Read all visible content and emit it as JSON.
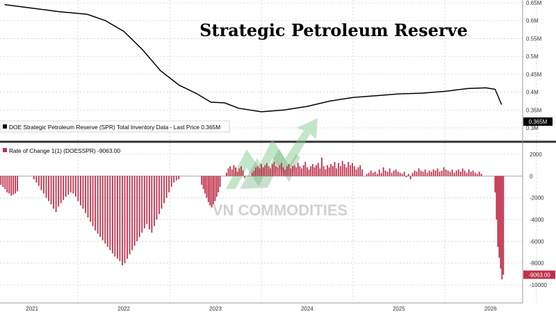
{
  "chart_data": [
    {
      "type": "line",
      "title": "Strategic Petroleum Reserve",
      "legend": {
        "label": "DOE Strategic Petroleum Reserve (SPR) Total Inventory Data - Last Price 0.365M",
        "placement": "bottom-left"
      },
      "last_value_label": "0.365M",
      "y_ticks": [
        "0.65M",
        "0.6M",
        "0.55M",
        "0.5M",
        "0.45M",
        "0.4M",
        "0.35M",
        "0.3M"
      ],
      "y_tick_values": [
        0.65,
        0.6,
        0.55,
        0.5,
        0.45,
        0.4,
        0.35,
        0.3
      ],
      "ylim": [
        0.3,
        0.65
      ],
      "grid": true,
      "x": [
        2020.7,
        2021.0,
        2021.3,
        2021.6,
        2021.8,
        2022.0,
        2022.2,
        2022.4,
        2022.6,
        2022.8,
        2022.95,
        2023.1,
        2023.25,
        2023.5,
        2023.75,
        2024.0,
        2024.25,
        2024.5,
        2024.75,
        2025.0,
        2025.25,
        2025.5,
        2025.75,
        2025.95,
        2026.05,
        2026.12
      ],
      "series": [
        {
          "values": [
            0.645,
            0.635,
            0.625,
            0.618,
            0.6,
            0.57,
            0.52,
            0.46,
            0.42,
            0.395,
            0.372,
            0.37,
            0.355,
            0.345,
            0.35,
            0.36,
            0.375,
            0.385,
            0.39,
            0.395,
            0.397,
            0.402,
            0.41,
            0.412,
            0.408,
            0.365
          ],
          "color": "#000000"
        }
      ]
    },
    {
      "type": "bar",
      "legend": {
        "label": "Rate of Change 1(1) (DOESSPR) -9063.00",
        "placement": "top-left"
      },
      "last_value_label": "-9063.00",
      "y_ticks": [
        "2000",
        "0",
        "-2000",
        "-4000",
        "-6000",
        "-8000",
        "-10000"
      ],
      "y_tick_values": [
        2000,
        0,
        -2000,
        -4000,
        -6000,
        -8000,
        -10000
      ],
      "ylim": [
        -10800,
        2500
      ],
      "grid": true,
      "bar_color": "#c0304a",
      "x_tick_labels": [
        "2021",
        "2022",
        "2023",
        "2024",
        "2025",
        "2026"
      ],
      "x_tick_positions": [
        2021.0,
        2022.0,
        2023.0,
        2024.0,
        2025.0,
        2026.0
      ],
      "xlim": [
        2020.65,
        2026.35
      ],
      "segments": [
        {
          "from": 2020.66,
          "to": 2020.84,
          "values": [
            -800,
            -1000,
            -1200,
            -1500,
            -1600,
            -1800,
            -1700,
            -1600,
            -1400
          ]
        },
        {
          "from": 2021.02,
          "to": 2022.6,
          "values": [
            -300,
            -600,
            -900,
            -1300,
            -1600,
            -2000,
            -2300,
            -2600,
            -3000,
            -3300,
            -2800,
            -2500,
            -2200,
            -1900,
            -1700,
            -1500,
            -1600,
            -1900,
            -2300,
            -2700,
            -3000,
            -3400,
            -3800,
            -4200,
            -4600,
            -5000,
            -5300,
            -5600,
            -5900,
            -6200,
            -6500,
            -6800,
            -7100,
            -7400,
            -7600,
            -7800,
            -8200,
            -8000,
            -7600,
            -7200,
            -6800,
            -6400,
            -6000,
            -5600,
            -5200,
            -4800,
            -4400,
            -4900,
            -5200,
            -4600,
            -4000,
            -3500,
            -3000,
            -2500,
            -2000,
            -1500,
            -1000,
            -600,
            -400,
            -300
          ]
        },
        {
          "from": 2022.85,
          "to": 2023.05,
          "values": [
            -800,
            -1200,
            -1600,
            -2000,
            -2400,
            -2700,
            -2900,
            -2600,
            -2300,
            -1900,
            -1500,
            -1000
          ]
        },
        {
          "from": 2023.12,
          "to": 2023.32,
          "values": [
            300,
            700,
            900,
            600,
            1000,
            800,
            400,
            700,
            900,
            500,
            -200
          ]
        },
        {
          "from": 2023.4,
          "to": 2024.3,
          "values": [
            300,
            500,
            800,
            900,
            700,
            1100,
            800,
            1000,
            1200,
            900,
            700,
            1100,
            1300,
            900,
            800,
            1000,
            1200,
            800,
            600,
            900,
            1100,
            700,
            900,
            1000,
            800,
            1200,
            900,
            700,
            1000,
            1300,
            800,
            600,
            900,
            1100,
            800,
            1000,
            1200,
            700,
            1700,
            900,
            600,
            1000,
            800,
            1100,
            900,
            1300
          ]
        },
        {
          "from": 2024.32,
          "to": 2024.6,
          "values": [
            700,
            1200,
            900,
            1400,
            1100,
            800,
            1300,
            1000,
            1200,
            900,
            600,
            800,
            1000,
            600
          ]
        },
        {
          "from": 2024.65,
          "to": 2025.9,
          "values": [
            200,
            300,
            500,
            300,
            400,
            200,
            600,
            300,
            800,
            500,
            400,
            700,
            300,
            500,
            600,
            400,
            300,
            200,
            400,
            -100,
            200,
            -300,
            300,
            500,
            400,
            700,
            500,
            400,
            600,
            300,
            500,
            400,
            600,
            500,
            700,
            400,
            500,
            800,
            600,
            500,
            400,
            600,
            300,
            500,
            600,
            400,
            700,
            500,
            300,
            600,
            400,
            500,
            300,
            200,
            400,
            200
          ]
        },
        {
          "from": 2026.05,
          "to": 2026.14,
          "values": [
            -1500,
            -4000,
            -6500,
            -7500,
            -8500,
            -9500,
            -9063
          ]
        }
      ]
    }
  ],
  "watermark": "VN COMMODITIES"
}
